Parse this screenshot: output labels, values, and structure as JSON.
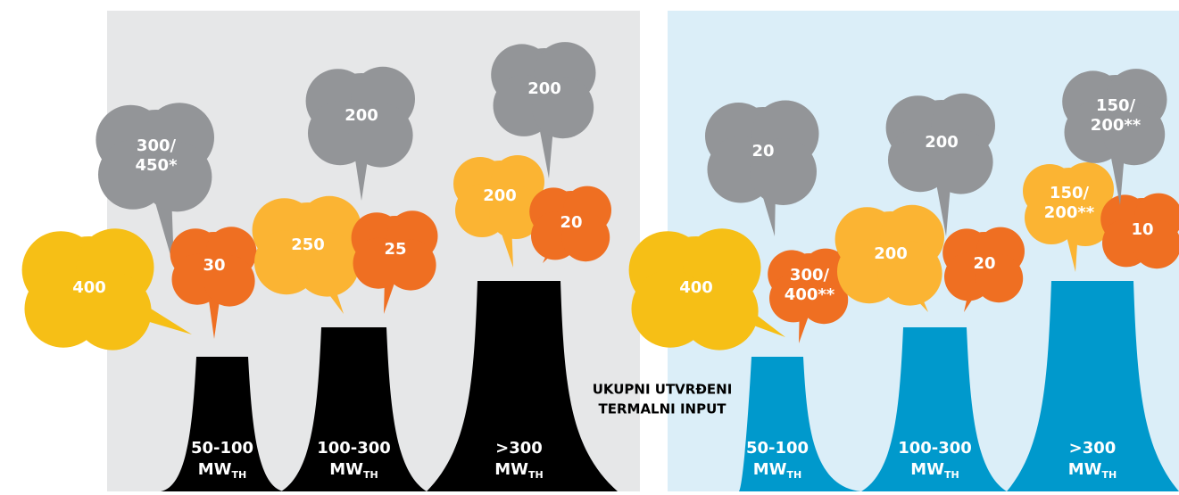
{
  "panels": [
    {
      "stacks": [
        {
          "range": "50-100",
          "unit": "MW",
          "sub": "TH"
        },
        {
          "range": "100-300",
          "unit": "MW",
          "sub": "TH"
        },
        {
          "range": ">300",
          "unit": "MW",
          "sub": "TH"
        }
      ],
      "clouds": [
        {
          "lines": [
            "400"
          ]
        },
        {
          "lines": [
            "300/",
            "450*"
          ]
        },
        {
          "lines": [
            "30"
          ]
        },
        {
          "lines": [
            "250"
          ]
        },
        {
          "lines": [
            "25"
          ]
        },
        {
          "lines": [
            "200"
          ]
        },
        {
          "lines": [
            "200"
          ]
        },
        {
          "lines": [
            "20"
          ]
        },
        {
          "lines": [
            "200"
          ]
        }
      ]
    },
    {
      "stacks": [
        {
          "range": "50-100",
          "unit": "MW",
          "sub": "TH"
        },
        {
          "range": "100-300",
          "unit": "MW",
          "sub": "TH"
        },
        {
          "range": ">300",
          "unit": "MW",
          "sub": "TH"
        }
      ],
      "clouds": [
        {
          "lines": [
            "400"
          ]
        },
        {
          "lines": [
            "300/",
            "400**"
          ]
        },
        {
          "lines": [
            "20"
          ]
        },
        {
          "lines": [
            "200"
          ]
        },
        {
          "lines": [
            "20"
          ]
        },
        {
          "lines": [
            "200"
          ]
        },
        {
          "lines": [
            "150/",
            "200**"
          ]
        },
        {
          "lines": [
            "10"
          ]
        },
        {
          "lines": [
            "150/",
            "200**"
          ]
        }
      ]
    }
  ],
  "center_label": [
    "UKUPNI UTVRĐENI",
    "TERMALNI INPUT"
  ]
}
